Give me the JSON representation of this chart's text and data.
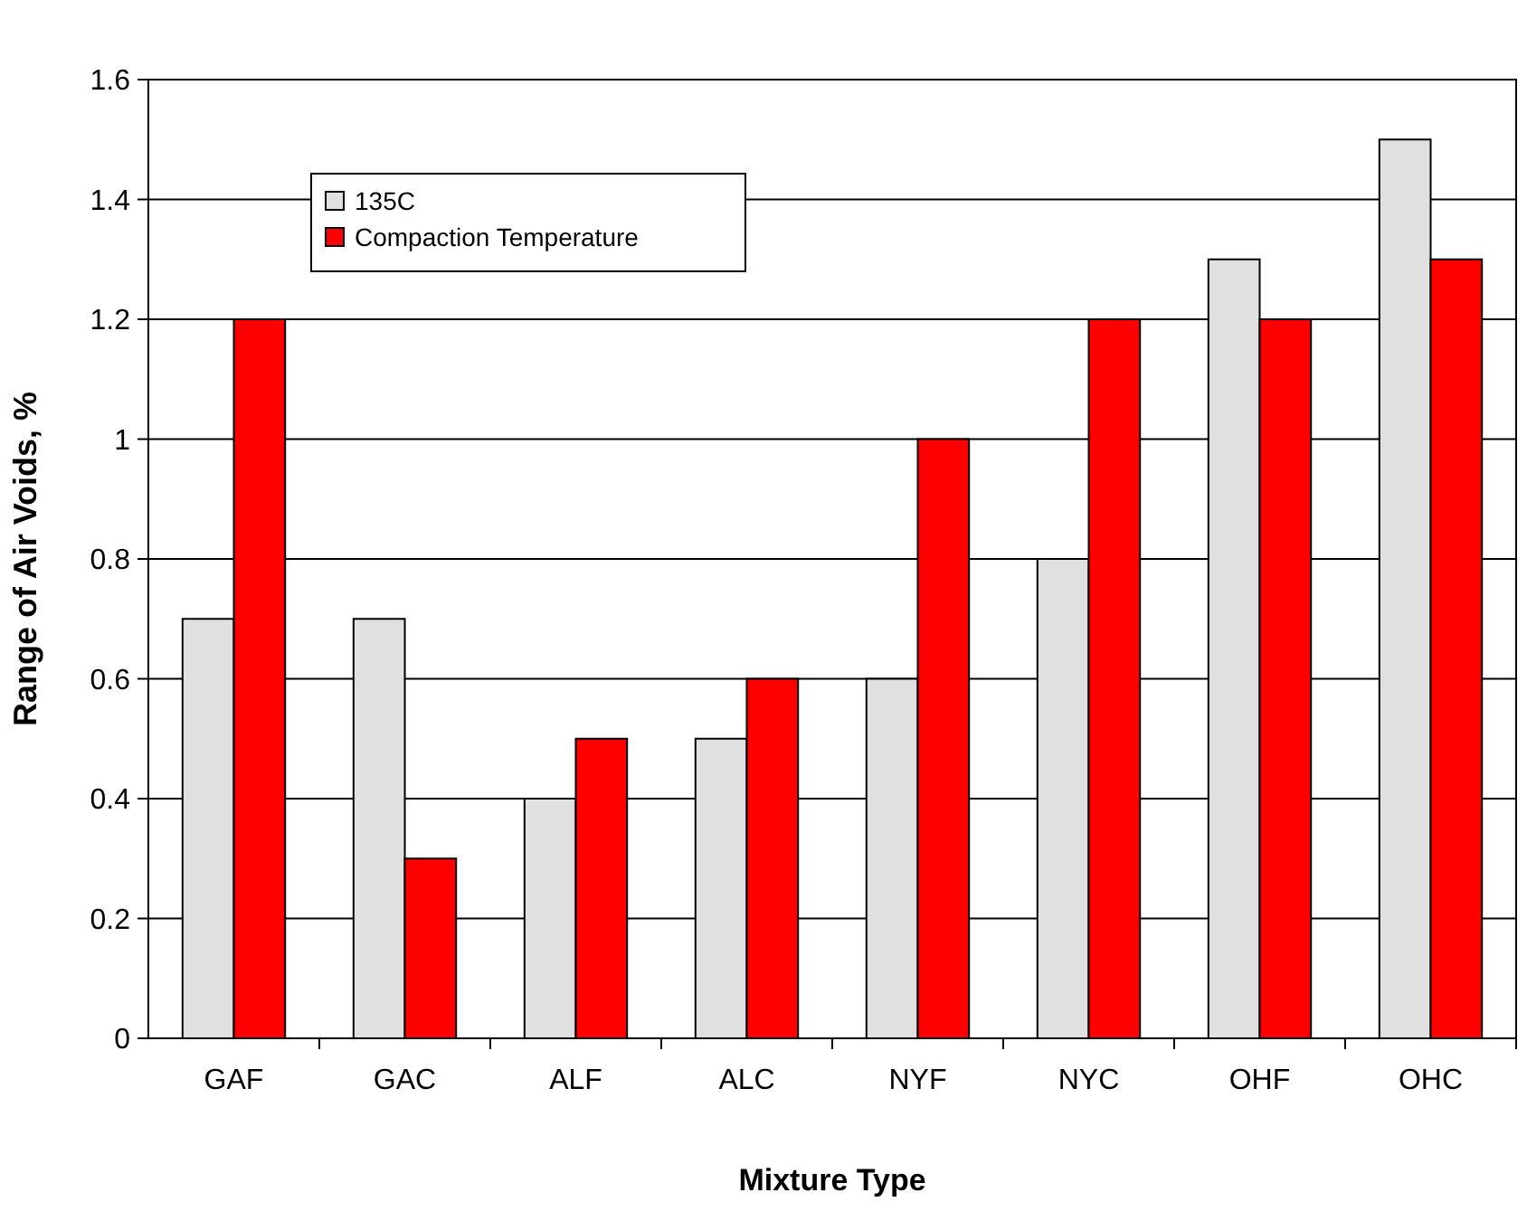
{
  "chart_data": {
    "type": "bar",
    "xlabel": "Mixture Type",
    "ylabel": "Range of Air Voids, %",
    "categories": [
      "GAF",
      "GAC",
      "ALF",
      "ALC",
      "NYF",
      "NYC",
      "OHF",
      "OHC"
    ],
    "series": [
      {
        "name": "135C",
        "color": "#e0e0e0",
        "values": [
          0.7,
          0.7,
          0.4,
          0.5,
          0.6,
          0.8,
          1.3,
          1.5
        ]
      },
      {
        "name": "Compaction Temperature",
        "color": "#ff0000",
        "values": [
          1.2,
          0.3,
          0.5,
          0.6,
          1.0,
          1.2,
          1.2,
          1.3
        ]
      }
    ],
    "ylim": [
      0,
      1.6
    ],
    "yticks": [
      0,
      0.2,
      0.4,
      0.6,
      0.8,
      1,
      1.2,
      1.4,
      1.6
    ],
    "grid": "y",
    "legend": "top left"
  }
}
